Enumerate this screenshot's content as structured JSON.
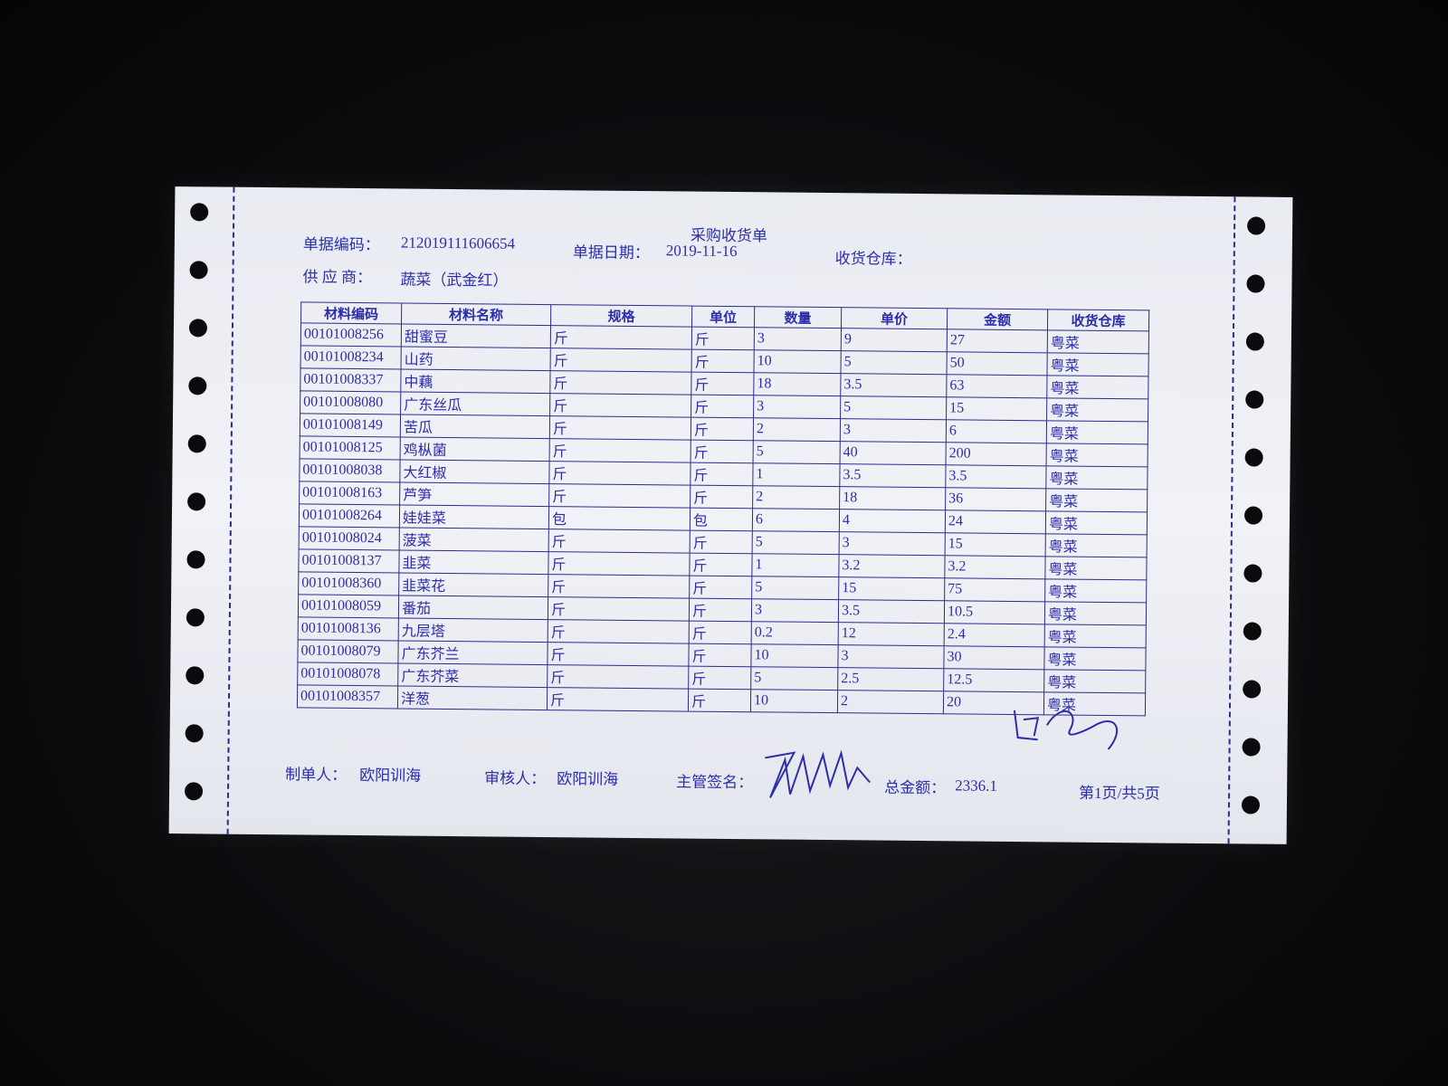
{
  "document": {
    "title": "采购收货单",
    "doc_no_label": "单据编码：",
    "doc_no": "212019111606654",
    "date_label": "单据日期：",
    "date": "2019-11-16",
    "warehouse_label": "收货仓库：",
    "warehouse": "",
    "supplier_label": "供 应 商：",
    "supplier": "蔬菜（武金红）"
  },
  "table": {
    "headers": [
      "材料编码",
      "材料名称",
      "规格",
      "单位",
      "数量",
      "单价",
      "金额",
      "收货仓库"
    ],
    "rows": [
      [
        "00101008256",
        "甜蜜豆",
        "斤",
        "斤",
        "3",
        "9",
        "27",
        "粤菜"
      ],
      [
        "00101008234",
        "山药",
        "斤",
        "斤",
        "10",
        "5",
        "50",
        "粤菜"
      ],
      [
        "00101008337",
        "中藕",
        "斤",
        "斤",
        "18",
        "3.5",
        "63",
        "粤菜"
      ],
      [
        "00101008080",
        "广东丝瓜",
        "斤",
        "斤",
        "3",
        "5",
        "15",
        "粤菜"
      ],
      [
        "00101008149",
        "苦瓜",
        "斤",
        "斤",
        "2",
        "3",
        "6",
        "粤菜"
      ],
      [
        "00101008125",
        "鸡枞菌",
        "斤",
        "斤",
        "5",
        "40",
        "200",
        "粤菜"
      ],
      [
        "00101008038",
        "大红椒",
        "斤",
        "斤",
        "1",
        "3.5",
        "3.5",
        "粤菜"
      ],
      [
        "00101008163",
        "芦笋",
        "斤",
        "斤",
        "2",
        "18",
        "36",
        "粤菜"
      ],
      [
        "00101008264",
        "娃娃菜",
        "包",
        "包",
        "6",
        "4",
        "24",
        "粤菜"
      ],
      [
        "00101008024",
        "菠菜",
        "斤",
        "斤",
        "5",
        "3",
        "15",
        "粤菜"
      ],
      [
        "00101008137",
        "韭菜",
        "斤",
        "斤",
        "1",
        "3.2",
        "3.2",
        "粤菜"
      ],
      [
        "00101008360",
        "韭菜花",
        "斤",
        "斤",
        "5",
        "15",
        "75",
        "粤菜"
      ],
      [
        "00101008059",
        "番茄",
        "斤",
        "斤",
        "3",
        "3.5",
        "10.5",
        "粤菜"
      ],
      [
        "00101008136",
        "九层塔",
        "斤",
        "斤",
        "0.2",
        "12",
        "2.4",
        "粤菜"
      ],
      [
        "00101008079",
        "广东芥兰",
        "斤",
        "斤",
        "10",
        "3",
        "30",
        "粤菜"
      ],
      [
        "00101008078",
        "广东芥菜",
        "斤",
        "斤",
        "5",
        "2.5",
        "12.5",
        "粤菜"
      ],
      [
        "00101008357",
        "洋葱",
        "斤",
        "斤",
        "10",
        "2",
        "20",
        "粤菜"
      ]
    ]
  },
  "footer": {
    "maker_label": "制单人：",
    "maker": "欧阳训海",
    "reviewer_label": "审核人：",
    "reviewer": "欧阳训海",
    "supervisor_label": "主管签名：",
    "total_label": "总金额：",
    "total": "2336.1",
    "page": "第1页/共5页"
  },
  "colors": {
    "ink": "#2c2ea8",
    "paper": "#eceef4",
    "background": "#0b0b0d"
  }
}
